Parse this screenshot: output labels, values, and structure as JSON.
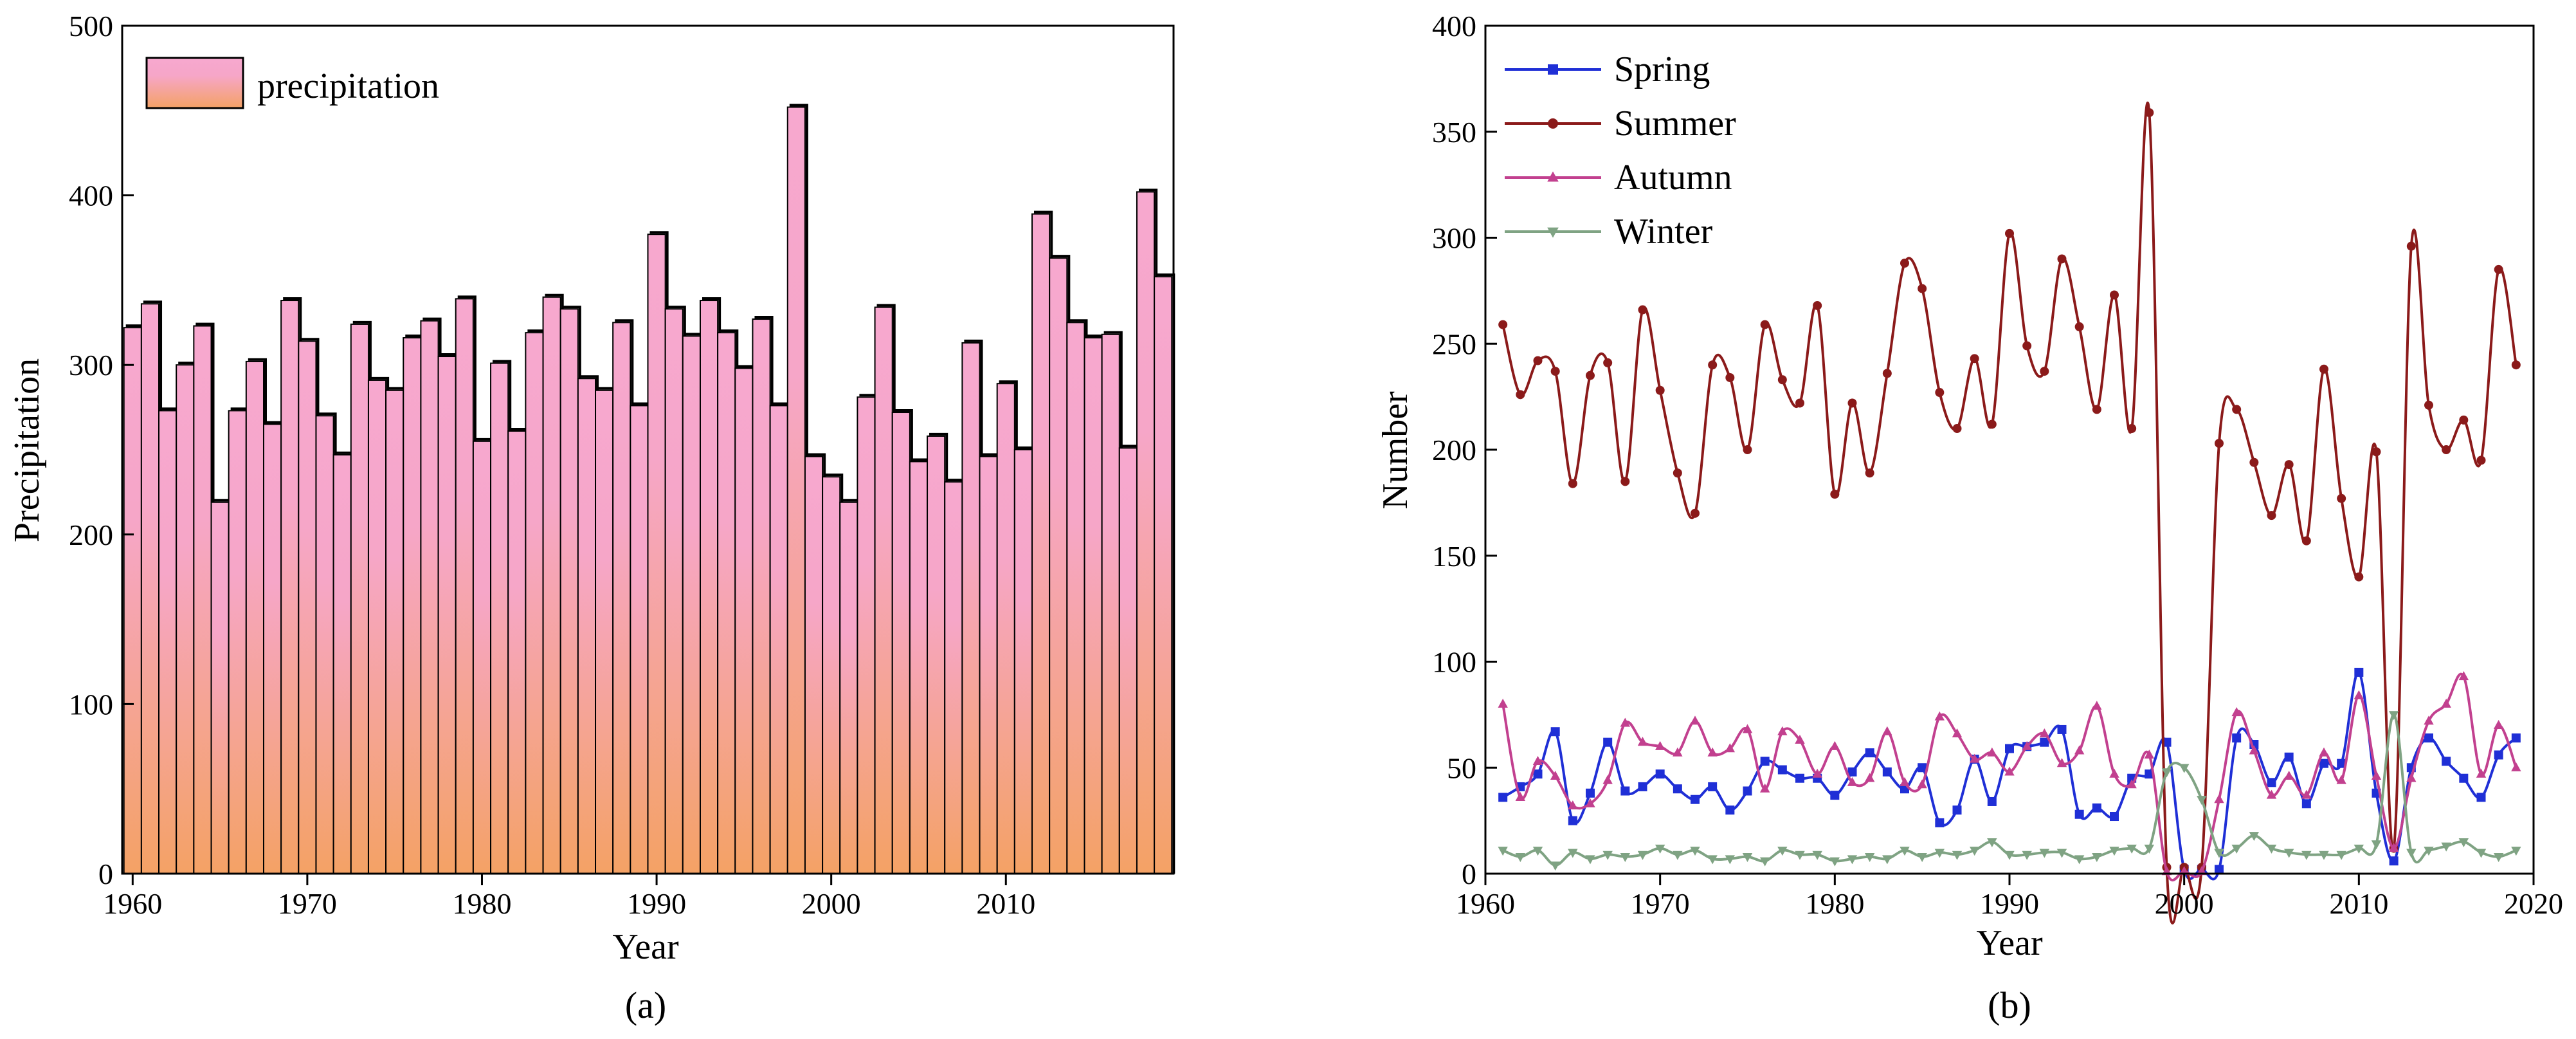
{
  "chart_data": [
    {
      "type": "bar",
      "caption": "(a)",
      "xlabel": "Year",
      "ylabel": "Precipitation",
      "xlim": [
        1959.4,
        2019.6
      ],
      "ylim": [
        0,
        500
      ],
      "xticks": [
        1960,
        1970,
        1980,
        1990,
        2000,
        2010
      ],
      "yticks": [
        0,
        100,
        200,
        300,
        400,
        500
      ],
      "legend_position": "top-left",
      "colors": {
        "bar_top": "#F7A8CF",
        "bar_bottom": "#F4A265",
        "edge": "#000000"
      },
      "series": [
        {
          "name": "precipitation",
          "x": [
            1960,
            1961,
            1962,
            1963,
            1964,
            1965,
            1966,
            1967,
            1968,
            1969,
            1970,
            1971,
            1972,
            1973,
            1974,
            1975,
            1976,
            1977,
            1978,
            1979,
            1980,
            1981,
            1982,
            1983,
            1984,
            1985,
            1986,
            1987,
            1988,
            1989,
            1990,
            1991,
            1992,
            1993,
            1994,
            1995,
            1996,
            1997,
            1998,
            1999,
            2000,
            2001,
            2002,
            2003,
            2004,
            2005,
            2006,
            2007,
            2008,
            2009,
            2010,
            2011,
            2012,
            2013,
            2014,
            2015,
            2016,
            2017,
            2018,
            2019
          ],
          "values": [
            322,
            336,
            273,
            300,
            323,
            219,
            273,
            302,
            265,
            338,
            314,
            270,
            247,
            324,
            291,
            285,
            316,
            326,
            305,
            339,
            255,
            301,
            261,
            319,
            340,
            333,
            292,
            285,
            325,
            276,
            377,
            333,
            317,
            338,
            319,
            298,
            327,
            276,
            452,
            246,
            234,
            219,
            281,
            334,
            272,
            243,
            258,
            231,
            313,
            246,
            289,
            250,
            389,
            363,
            325,
            316,
            318,
            251,
            402,
            352
          ]
        }
      ]
    },
    {
      "type": "line",
      "caption": "(b)",
      "xlabel": "Year",
      "ylabel": "Number",
      "xlim": [
        1960,
        2020
      ],
      "ylim": [
        0,
        400
      ],
      "xticks": [
        1960,
        1970,
        1980,
        1990,
        2000,
        2010,
        2020
      ],
      "yticks": [
        0,
        50,
        100,
        150,
        200,
        250,
        300,
        350,
        400
      ],
      "legend_position": "top-left",
      "x": [
        1961,
        1962,
        1963,
        1964,
        1965,
        1966,
        1967,
        1968,
        1969,
        1970,
        1971,
        1972,
        1973,
        1974,
        1975,
        1976,
        1977,
        1978,
        1979,
        1980,
        1981,
        1982,
        1983,
        1984,
        1985,
        1986,
        1987,
        1988,
        1989,
        1990,
        1991,
        1992,
        1993,
        1994,
        1995,
        1996,
        1997,
        1998,
        1999,
        2000,
        2001,
        2002,
        2003,
        2004,
        2005,
        2006,
        2007,
        2008,
        2009,
        2010,
        2011,
        2012,
        2013,
        2014,
        2015,
        2016,
        2017,
        2018,
        2019
      ],
      "series": [
        {
          "name": "Spring",
          "color": "#1F2FD6",
          "marker": "square",
          "values": [
            36,
            41,
            47,
            67,
            25,
            38,
            62,
            39,
            41,
            47,
            40,
            35,
            41,
            30,
            39,
            53,
            49,
            45,
            45,
            37,
            48,
            57,
            48,
            40,
            50,
            24,
            30,
            54,
            34,
            59,
            60,
            62,
            68,
            28,
            31,
            27,
            45,
            47,
            62,
            2,
            2,
            2,
            64,
            61,
            43,
            55,
            33,
            52,
            52,
            95,
            38,
            6,
            50,
            64,
            53,
            45,
            36,
            56,
            64
          ]
        },
        {
          "name": "Summer",
          "color": "#8B1A1A",
          "marker": "circle",
          "values": [
            259,
            226,
            242,
            237,
            184,
            235,
            241,
            185,
            266,
            228,
            189,
            170,
            240,
            234,
            200,
            259,
            233,
            222,
            268,
            179,
            222,
            189,
            236,
            288,
            276,
            227,
            210,
            243,
            212,
            302,
            249,
            237,
            290,
            258,
            219,
            273,
            210,
            359,
            3,
            3,
            3,
            203,
            219,
            194,
            169,
            193,
            157,
            238,
            177,
            140,
            199,
            12,
            296,
            221,
            200,
            214,
            195,
            285,
            240
          ]
        },
        {
          "name": "Autumn",
          "color": "#C2408F",
          "marker": "triangle-up",
          "values": [
            80,
            36,
            53,
            46,
            32,
            33,
            44,
            71,
            62,
            60,
            57,
            72,
            57,
            59,
            68,
            40,
            67,
            63,
            47,
            60,
            43,
            45,
            67,
            43,
            42,
            74,
            66,
            54,
            57,
            48,
            60,
            66,
            52,
            58,
            79,
            47,
            42,
            56,
            1,
            1,
            1,
            35,
            76,
            58,
            37,
            46,
            37,
            57,
            44,
            84,
            46,
            12,
            45,
            72,
            80,
            93,
            47,
            70,
            50
          ]
        },
        {
          "name": "Winter",
          "color": "#7FA383",
          "marker": "triangle-down",
          "values": [
            11,
            8,
            11,
            4,
            10,
            7,
            9,
            8,
            9,
            12,
            9,
            11,
            7,
            7,
            8,
            6,
            11,
            9,
            9,
            6,
            7,
            8,
            7,
            11,
            8,
            10,
            9,
            11,
            15,
            9,
            9,
            10,
            10,
            7,
            8,
            11,
            12,
            12,
            48,
            50,
            35,
            10,
            12,
            18,
            12,
            10,
            9,
            9,
            9,
            12,
            14,
            75,
            10,
            11,
            13,
            15,
            10,
            8,
            11
          ]
        }
      ]
    }
  ]
}
